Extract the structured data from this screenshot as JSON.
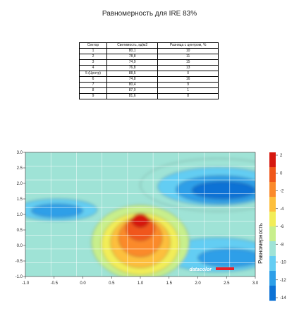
{
  "title": "Равномерность для IRE 83%",
  "table": {
    "headers": [
      "Сектор",
      "Светимость, кд/м2",
      "Разница с центром, %"
    ],
    "rows": [
      [
        "1",
        "80,1",
        "10"
      ],
      [
        "2",
        "78,8",
        "11"
      ],
      [
        "3",
        "74,9",
        "15"
      ],
      [
        "4",
        "76,8",
        "13"
      ],
      [
        "5 (Центр)",
        "88,5",
        "0"
      ],
      [
        "6",
        "74,8",
        "16"
      ],
      [
        "7",
        "80,4",
        "9"
      ],
      [
        "8",
        "87,9",
        "1"
      ],
      [
        "9",
        "81,6",
        "8"
      ]
    ]
  },
  "chart_data": {
    "type": "heatmap",
    "title": "",
    "xlabel": "",
    "ylabel": "",
    "xlim": [
      -1.0,
      3.0
    ],
    "ylim": [
      -1.0,
      3.0
    ],
    "x_ticks": [
      "-1.0",
      "-0.5",
      "0.0",
      "0.5",
      "1.0",
      "1.5",
      "2.0",
      "2.5",
      "3.0"
    ],
    "y_ticks": [
      "3.0",
      "2.5",
      "2.0",
      "1.5",
      "1.0",
      "0.5",
      "0.0",
      "-0.5",
      "-1.0"
    ],
    "watermark": "datacolor",
    "colorbar": {
      "label": "Равномерность",
      "ticks": [
        "2",
        "0",
        "-2",
        "-4",
        "-6",
        "-8",
        "-10",
        "-12",
        "-14"
      ],
      "colors": [
        "#d6180f",
        "#f0571a",
        "#fb8a2b",
        "#fdbf3c",
        "#f2ed58",
        "#c8ef8c",
        "#9fe3d6",
        "#64cdf3",
        "#2d9fe8",
        "#0c72d5"
      ]
    },
    "grid": true,
    "grid_columns": 9,
    "grid_rows": 9,
    "sectors_percent_diff": [
      10,
      11,
      15,
      13,
      0,
      16,
      9,
      1,
      8
    ]
  }
}
